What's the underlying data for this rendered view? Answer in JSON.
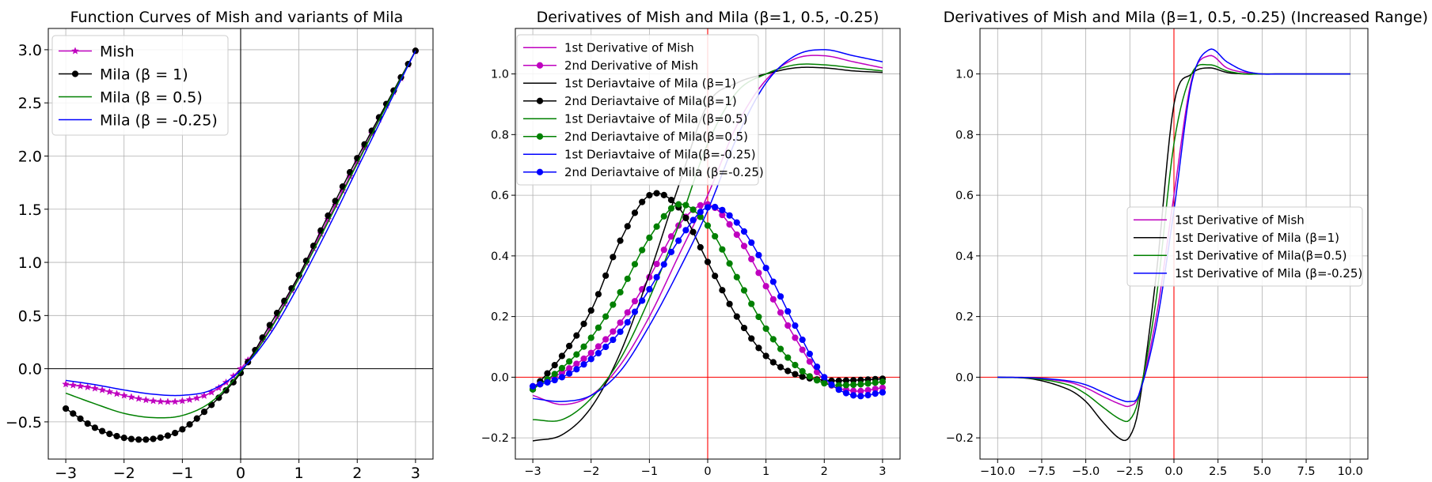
{
  "chart_data": [
    {
      "type": "line",
      "title": "Function Curves of Mish and variants of Mila",
      "xlim": [
        -3.3,
        3.3
      ],
      "ylim": [
        -0.85,
        3.2
      ],
      "xticks": [
        -3,
        -2,
        -1,
        0,
        1,
        2,
        3
      ],
      "yticks": [
        -0.5,
        0.0,
        0.5,
        1.0,
        1.5,
        2.0,
        2.5,
        3.0
      ],
      "xtick_labels": [
        "−3",
        "−2",
        "−1",
        "0",
        "1",
        "2",
        "3"
      ],
      "ytick_labels": [
        "−0.5",
        "0.0",
        "0.5",
        "1.0",
        "1.5",
        "2.0",
        "2.5",
        "3.0"
      ],
      "axis_lines": {
        "x": 0,
        "y": 0,
        "color": "#000000"
      },
      "grid": true,
      "legend_position": "top-left",
      "x": [
        -3.0,
        -2.5,
        -2.0,
        -1.5,
        -1.0,
        -0.5,
        0.0,
        0.5,
        1.0,
        1.5,
        2.0,
        2.5,
        3.0
      ],
      "series": [
        {
          "name": "Mish",
          "color": "#bf00bf",
          "marker": "star",
          "values": [
            -0.146,
            -0.185,
            -0.252,
            -0.303,
            -0.303,
            -0.222,
            0.0,
            0.375,
            0.865,
            1.404,
            1.944,
            2.475,
            2.987
          ]
        },
        {
          "name": "Mila (β = 1)",
          "color": "#000000",
          "marker": "dot",
          "values": [
            -0.375,
            -0.555,
            -0.65,
            -0.66,
            -0.57,
            -0.34,
            -0.04,
            0.41,
            0.88,
            1.44,
            1.98,
            2.49,
            2.99
          ]
        },
        {
          "name": "Mila (β = 0.5)",
          "color": "#008000",
          "marker": "none",
          "values": [
            -0.23,
            -0.33,
            -0.42,
            -0.46,
            -0.44,
            -0.31,
            -0.03,
            0.36,
            0.85,
            1.38,
            1.93,
            2.47,
            2.99
          ]
        },
        {
          "name": "Mila (β = -0.25)",
          "color": "#0000ff",
          "marker": "none",
          "values": [
            -0.11,
            -0.15,
            -0.2,
            -0.24,
            -0.25,
            -0.2,
            -0.015,
            0.32,
            0.79,
            1.32,
            1.88,
            2.44,
            2.99
          ]
        }
      ]
    },
    {
      "type": "line",
      "title": "Derivatives of Mish and Mila (β=1, 0.5, -0.25)",
      "xlim": [
        -3.3,
        3.3
      ],
      "ylim": [
        -0.27,
        1.15
      ],
      "xticks": [
        -3,
        -2,
        -1,
        0,
        1,
        2,
        3
      ],
      "yticks": [
        -0.2,
        0.0,
        0.2,
        0.4,
        0.6,
        0.8,
        1.0
      ],
      "xtick_labels": [
        "−3",
        "−2",
        "−1",
        "0",
        "1",
        "2",
        "3"
      ],
      "ytick_labels": [
        "−0.2",
        "0.0",
        "0.2",
        "0.4",
        "0.6",
        "0.8",
        "1.0"
      ],
      "axis_lines": {
        "x": 0,
        "y": 0,
        "color": "#ff0000"
      },
      "grid": true,
      "legend_position": "top-left",
      "x": [
        -3.0,
        -2.5,
        -2.0,
        -1.5,
        -1.0,
        -0.5,
        0.0,
        0.5,
        1.0,
        1.5,
        2.0,
        2.5,
        3.0
      ],
      "series": [
        {
          "name": "1st Derivative of Mish",
          "color": "#bf00bf",
          "marker": "none",
          "values": [
            -0.06,
            -0.09,
            -0.06,
            0.04,
            0.2,
            0.4,
            0.6,
            0.83,
            0.98,
            1.05,
            1.06,
            1.04,
            1.02
          ]
        },
        {
          "name": "2nd Derivative of Mish",
          "color": "#bf00bf",
          "marker": "dot",
          "values": [
            -0.03,
            0.015,
            0.08,
            0.18,
            0.33,
            0.5,
            0.57,
            0.47,
            0.3,
            0.13,
            -0.01,
            -0.045,
            -0.035
          ]
        },
        {
          "name": "1st Deriavtaive of Mila (β=1)",
          "color": "#000000",
          "marker": "none",
          "values": [
            -0.21,
            -0.19,
            -0.1,
            0.08,
            0.34,
            0.63,
            0.9,
            0.97,
            1.0,
            1.02,
            1.02,
            1.01,
            1.005
          ]
        },
        {
          "name": "2nd Deriavtaive of Mila(β=1)",
          "color": "#000000",
          "marker": "dot",
          "values": [
            -0.04,
            0.07,
            0.22,
            0.45,
            0.6,
            0.56,
            0.38,
            0.2,
            0.07,
            0.01,
            -0.01,
            -0.01,
            -0.005
          ]
        },
        {
          "name": "1st Deriavtaive of Mila (β=0.5)",
          "color": "#008000",
          "marker": "none",
          "values": [
            -0.14,
            -0.14,
            -0.07,
            0.06,
            0.26,
            0.5,
            0.77,
            0.94,
            1.0,
            1.03,
            1.03,
            1.02,
            1.01
          ]
        },
        {
          "name": "2nd Deriavtaive of Mila(β=0.5)",
          "color": "#008000",
          "marker": "dot",
          "values": [
            -0.04,
            0.03,
            0.13,
            0.28,
            0.46,
            0.57,
            0.5,
            0.33,
            0.16,
            0.04,
            -0.02,
            -0.025,
            -0.015
          ]
        },
        {
          "name": "1st Deriavtaive of Mila(β=-0.25)",
          "color": "#0000ff",
          "marker": "none",
          "values": [
            -0.07,
            -0.08,
            -0.06,
            0.02,
            0.17,
            0.35,
            0.55,
            0.79,
            0.97,
            1.06,
            1.08,
            1.06,
            1.04
          ]
        },
        {
          "name": "2nd Deriavtaive of Mila (β=-0.25)",
          "color": "#0000ff",
          "marker": "dot",
          "values": [
            -0.03,
            0.0,
            0.06,
            0.15,
            0.29,
            0.45,
            0.56,
            0.51,
            0.36,
            0.17,
            0.0,
            -0.06,
            -0.05
          ]
        }
      ]
    },
    {
      "type": "line",
      "title": "Derivatives of Mish and Mila (β=1, 0.5, -0.25) (Increased Range)",
      "xlim": [
        -11.0,
        11.0
      ],
      "ylim": [
        -0.27,
        1.15
      ],
      "xticks": [
        -10.0,
        -7.5,
        -5.0,
        -2.5,
        0.0,
        2.5,
        5.0,
        7.5,
        10.0
      ],
      "yticks": [
        -0.2,
        0.0,
        0.2,
        0.4,
        0.6,
        0.8,
        1.0
      ],
      "xtick_labels": [
        "−10.0",
        "−7.5",
        "−5.0",
        "−2.5",
        "0.0",
        "2.5",
        "5.0",
        "7.5",
        "10.0"
      ],
      "ytick_labels": [
        "−0.2",
        "0.0",
        "0.2",
        "0.4",
        "0.6",
        "0.8",
        "1.0"
      ],
      "axis_lines": {
        "x": 0,
        "y": 0,
        "color": "#ff0000"
      },
      "grid": true,
      "legend_position": "center-right",
      "x": [
        -10,
        -8,
        -6,
        -5,
        -4,
        -3,
        -2.5,
        -2,
        -1,
        0,
        1,
        2,
        3,
        4,
        5,
        6,
        8,
        10
      ],
      "series": [
        {
          "name": "1st Derivative of Mish",
          "color": "#bf00bf",
          "marker": "none",
          "values": [
            0.0,
            -0.003,
            -0.016,
            -0.035,
            -0.064,
            -0.09,
            -0.095,
            -0.06,
            0.2,
            0.6,
            0.98,
            1.06,
            1.02,
            1.005,
            1.0,
            1.0,
            1.0,
            1.0
          ]
        },
        {
          "name": "1st Derivative of  Mila (β=1)",
          "color": "#000000",
          "marker": "none",
          "values": [
            0.0,
            -0.006,
            -0.04,
            -0.08,
            -0.15,
            -0.205,
            -0.195,
            -0.1,
            0.34,
            0.9,
            1.0,
            1.02,
            1.005,
            1.0,
            1.0,
            1.0,
            1.0,
            1.0
          ]
        },
        {
          "name": "1st Derivative of  Mila(β=0.5)",
          "color": "#008000",
          "marker": "none",
          "values": [
            0.0,
            -0.004,
            -0.025,
            -0.055,
            -0.1,
            -0.14,
            -0.14,
            -0.07,
            0.26,
            0.77,
            1.0,
            1.03,
            1.01,
            1.0,
            1.0,
            1.0,
            1.0,
            1.0
          ]
        },
        {
          "name": "1st Derivative of Mila  (β=-0.25)",
          "color": "#0000ff",
          "marker": "none",
          "values": [
            0.0,
            -0.002,
            -0.012,
            -0.025,
            -0.05,
            -0.075,
            -0.08,
            -0.06,
            0.17,
            0.55,
            0.97,
            1.08,
            1.04,
            1.01,
            1.0,
            1.0,
            1.0,
            1.0
          ]
        }
      ]
    }
  ]
}
